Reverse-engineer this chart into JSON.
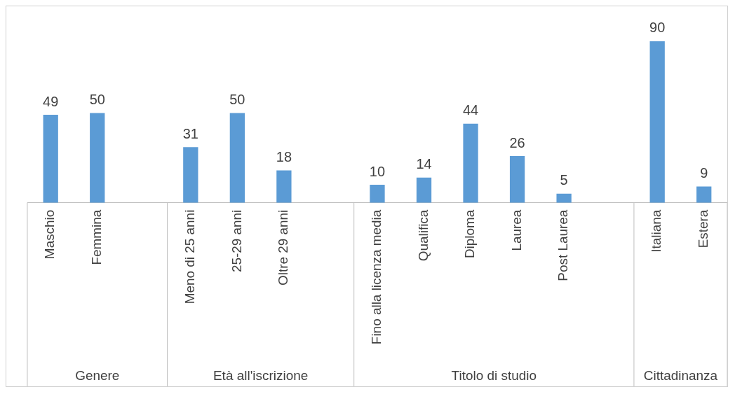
{
  "chart_data": {
    "type": "bar",
    "categories": [
      "Maschio",
      "Femmina",
      null,
      "Meno di 25 anni",
      "25-29 anni",
      "Oltre 29 anni",
      null,
      "Fino alla licenza media",
      "Qualifica",
      "Diploma",
      "Laurea",
      "Post Laurea",
      null,
      "Italiana",
      "Estera"
    ],
    "values": [
      49,
      50,
      null,
      31,
      50,
      18,
      null,
      10,
      14,
      44,
      26,
      5,
      null,
      90,
      9
    ],
    "color": "#5b9bd5",
    "data_labels": true,
    "grid": false,
    "legend": false,
    "tick_labels": "x",
    "annotations": [
      "Genere",
      "Età all'iscrizione",
      "Titolo di studio",
      "Cittadinanza"
    ]
  }
}
